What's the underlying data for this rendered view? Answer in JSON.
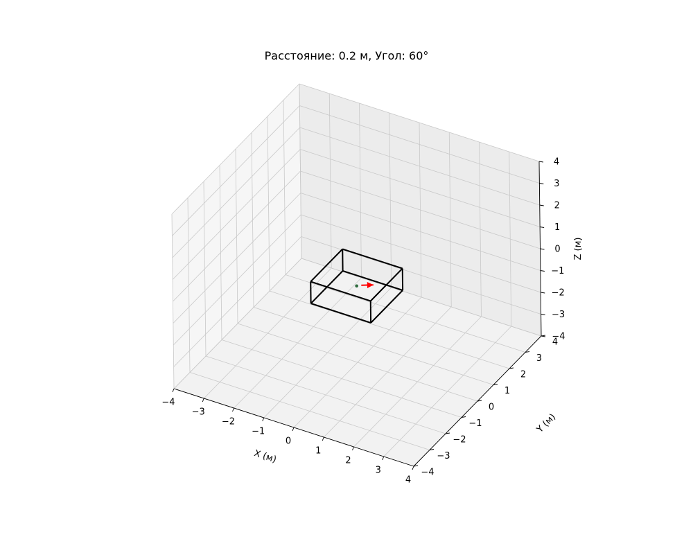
{
  "chart_data": {
    "type": "3d-wireframe",
    "title": "Расстояние: 0.2 м, Угол: 60°",
    "xlabel": "X (м)",
    "ylabel": "Y (м)",
    "zlabel": "Z (м)",
    "xlim": [
      -4,
      4
    ],
    "ylim": [
      -4,
      4
    ],
    "zlim": [
      -4,
      4
    ],
    "grid": true,
    "ticks": {
      "x": [
        -4,
        -3,
        -2,
        -1,
        0,
        1,
        2,
        3,
        4
      ],
      "y": [
        -4,
        -3,
        -2,
        -1,
        0,
        1,
        2,
        3,
        4
      ],
      "z": [
        -4,
        -3,
        -2,
        -1,
        0,
        1,
        2,
        3,
        4
      ]
    },
    "tick_labels": {
      "x": [
        "−4",
        "−3",
        "−2",
        "−1",
        "0",
        "1",
        "2",
        "3",
        "4"
      ],
      "y": [
        "−4",
        "−3",
        "−2",
        "−1",
        "0",
        "1",
        "2",
        "3",
        "4"
      ],
      "z": [
        "−4",
        "−3",
        "−2",
        "−1",
        "0",
        "1",
        "2",
        "3",
        "4"
      ]
    },
    "box": {
      "x": [
        -1,
        1
      ],
      "y": [
        -1,
        1
      ],
      "z": [
        -1,
        0
      ],
      "color": "#000000"
    },
    "point": {
      "x": 0,
      "y": 0,
      "z": -0.5,
      "color": "#2e6b3e"
    },
    "arrow": {
      "from": [
        0.1,
        0.1,
        -0.5
      ],
      "to": [
        0.4,
        0.3,
        -0.5
      ],
      "color": "#ff0000"
    }
  }
}
